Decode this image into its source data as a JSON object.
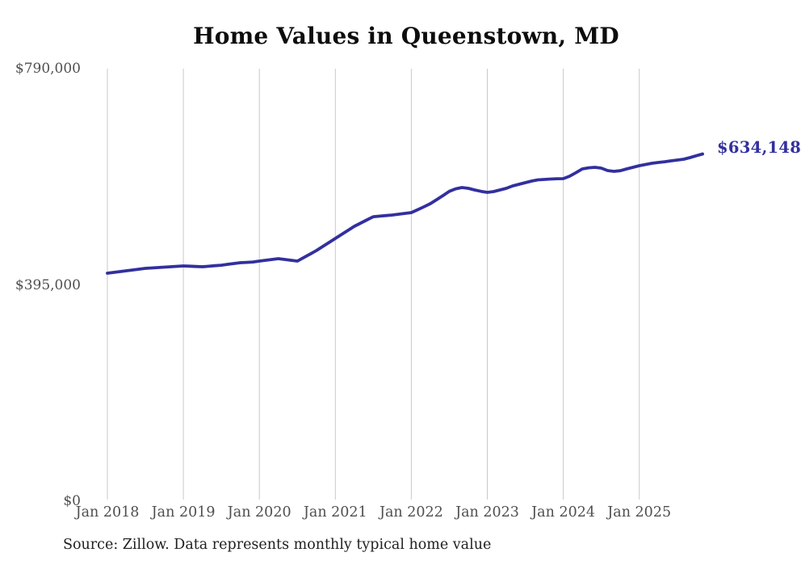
{
  "header": {
    "title": "Home Values in Queenstown, MD"
  },
  "footer": {
    "source": "Source: Zillow. Data represents monthly typical home value"
  },
  "chart_data": {
    "type": "line",
    "title": "Home Values in Queenstown, MD",
    "series_name": "Monthly typical home value",
    "xlabel": "",
    "ylabel": "",
    "ylim": [
      0,
      790000
    ],
    "grid": "vertical-only",
    "legend": "none",
    "line_color": "#32309e",
    "grid_color": "#c9c9c9",
    "axis_label_color": "#4f4f4f",
    "end_label": "$634,148",
    "end_value": 634148,
    "y_ticks": [
      {
        "label": "$790,000",
        "value": 790000
      },
      {
        "label": "$395,000",
        "value": 395000
      },
      {
        "label": "$0",
        "value": 0
      }
    ],
    "x_ticks": [
      {
        "label": "Jan 2018",
        "month_index": 0
      },
      {
        "label": "Jan 2019",
        "month_index": 12
      },
      {
        "label": "Jan 2020",
        "month_index": 24
      },
      {
        "label": "Jan 2021",
        "month_index": 36
      },
      {
        "label": "Jan 2022",
        "month_index": 48
      },
      {
        "label": "Jan 2023",
        "month_index": 60
      },
      {
        "label": "Jan 2024",
        "month_index": 72
      },
      {
        "label": "Jan 2025",
        "month_index": 84
      }
    ],
    "x": [
      "2018-01",
      "2018-02",
      "2018-03",
      "2018-04",
      "2018-05",
      "2018-06",
      "2018-07",
      "2018-08",
      "2018-09",
      "2018-10",
      "2018-11",
      "2018-12",
      "2019-01",
      "2019-02",
      "2019-03",
      "2019-04",
      "2019-05",
      "2019-06",
      "2019-07",
      "2019-08",
      "2019-09",
      "2019-10",
      "2019-11",
      "2019-12",
      "2020-01",
      "2020-02",
      "2020-03",
      "2020-04",
      "2020-05",
      "2020-06",
      "2020-07",
      "2020-08",
      "2020-09",
      "2020-10",
      "2020-11",
      "2020-12",
      "2021-01",
      "2021-02",
      "2021-03",
      "2021-04",
      "2021-05",
      "2021-06",
      "2021-07",
      "2021-08",
      "2021-09",
      "2021-10",
      "2021-11",
      "2021-12",
      "2022-01",
      "2022-02",
      "2022-03",
      "2022-04",
      "2022-05",
      "2022-06",
      "2022-07",
      "2022-08",
      "2022-09",
      "2022-10",
      "2022-11",
      "2022-12",
      "2023-01",
      "2023-02",
      "2023-03",
      "2023-04",
      "2023-05",
      "2023-06",
      "2023-07",
      "2023-08",
      "2023-09",
      "2023-10",
      "2023-11",
      "2023-12",
      "2024-01",
      "2024-02",
      "2024-03",
      "2024-04",
      "2024-05",
      "2024-06",
      "2024-07",
      "2024-08",
      "2024-09",
      "2024-10",
      "2024-11",
      "2024-12",
      "2025-01",
      "2025-02",
      "2025-03",
      "2025-04",
      "2025-05",
      "2025-06",
      "2025-07",
      "2025-08",
      "2025-09",
      "2025-10",
      "2025-11"
    ],
    "values": [
      416400,
      417900,
      419400,
      420900,
      422300,
      423800,
      425300,
      426000,
      426800,
      427500,
      428200,
      429000,
      429700,
      429200,
      428700,
      428200,
      429100,
      430100,
      431100,
      432600,
      434100,
      435600,
      436200,
      436900,
      438500,
      440000,
      441500,
      443000,
      441500,
      440000,
      438500,
      444900,
      451300,
      457700,
      465100,
      472500,
      479900,
      487300,
      494600,
      502000,
      507900,
      513800,
      519700,
      520700,
      521700,
      522700,
      524200,
      525700,
      527100,
      532300,
      537800,
      543400,
      550800,
      558100,
      566000,
      570500,
      573000,
      571500,
      568500,
      566000,
      564100,
      565500,
      568500,
      571500,
      575900,
      578800,
      581800,
      584700,
      586900,
      587700,
      588400,
      589100,
      589200,
      593600,
      600100,
      606900,
      609000,
      609800,
      608400,
      603900,
      602500,
      603700,
      606900,
      609800,
      612800,
      615000,
      617200,
      618700,
      620100,
      621600,
      623100,
      624600,
      627500,
      631000,
      634148
    ]
  }
}
